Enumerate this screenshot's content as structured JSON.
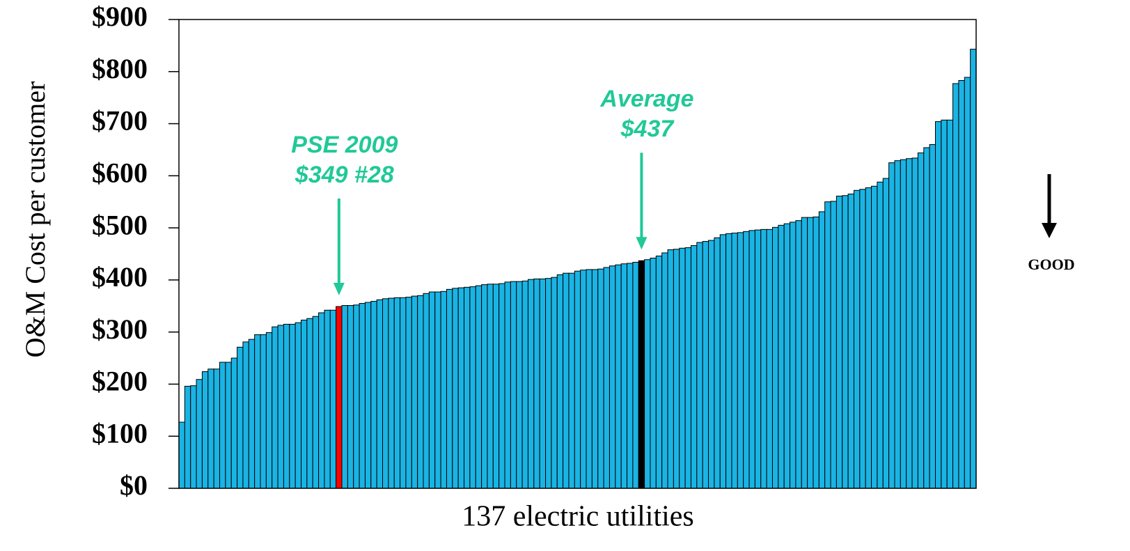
{
  "chart_data": {
    "type": "bar",
    "ylabel": "O&M Cost per customer",
    "xlabel": "137 electric utilities",
    "categories": [
      null,
      null,
      null,
      null,
      null,
      null,
      null,
      null,
      null,
      null,
      null,
      null,
      null,
      null,
      null,
      null,
      null,
      null,
      null,
      null,
      null,
      null,
      null,
      null,
      null,
      null,
      null,
      null,
      null,
      null,
      null,
      null,
      null,
      null,
      null,
      null,
      null,
      null,
      null,
      null,
      null,
      null,
      null,
      null,
      null,
      null,
      null,
      null,
      null,
      null,
      null,
      null,
      null,
      null,
      null,
      null,
      null,
      null,
      null,
      null,
      null,
      null,
      null,
      null,
      null,
      null,
      null,
      null,
      null,
      null,
      null,
      null,
      null,
      null,
      null,
      null,
      null,
      null,
      null,
      null,
      null,
      null,
      null,
      null,
      null,
      null,
      null,
      null,
      null,
      null,
      null,
      null,
      null,
      null,
      null,
      null,
      null,
      null,
      null,
      null,
      null,
      null,
      null,
      null,
      null,
      null,
      null,
      null,
      null,
      null,
      null,
      null,
      null,
      null,
      null,
      null,
      null,
      null,
      null,
      null,
      null,
      null,
      null,
      null,
      null,
      null,
      null,
      null,
      null,
      null,
      null,
      null,
      null,
      null,
      null,
      null,
      null
    ],
    "values": [
      127,
      196,
      197,
      209,
      224,
      229,
      229,
      242,
      242,
      250,
      271,
      281,
      286,
      295,
      295,
      299,
      310,
      313,
      315,
      315,
      318,
      323,
      326,
      330,
      337,
      342,
      342,
      349,
      351,
      351,
      352,
      355,
      357,
      359,
      362,
      364,
      365,
      366,
      366,
      367,
      369,
      370,
      374,
      377,
      377,
      378,
      382,
      384,
      385,
      386,
      387,
      389,
      391,
      392,
      392,
      393,
      396,
      397,
      397,
      398,
      401,
      402,
      402,
      403,
      405,
      410,
      413,
      413,
      417,
      419,
      420,
      420,
      421,
      424,
      427,
      429,
      431,
      432,
      434,
      437,
      439,
      442,
      446,
      452,
      458,
      459,
      461,
      462,
      466,
      472,
      474,
      476,
      481,
      487,
      489,
      490,
      491,
      493,
      495,
      496,
      497,
      497,
      501,
      505,
      508,
      511,
      514,
      520,
      520,
      521,
      531,
      550,
      551,
      561,
      562,
      565,
      572,
      574,
      577,
      580,
      588,
      595,
      625,
      629,
      631,
      633,
      634,
      644,
      654,
      660,
      704,
      707,
      707,
      777,
      783,
      789,
      843
    ],
    "color": "#1ab4e4",
    "highlights": [
      {
        "index": 27,
        "color": "#ff0000"
      },
      {
        "index": 79,
        "color": "#000000"
      }
    ],
    "ylim": [
      0,
      900
    ],
    "yticks": [
      {
        "value": 0,
        "label": "$0"
      },
      {
        "value": 100,
        "label": "$100"
      },
      {
        "value": 200,
        "label": "$200"
      },
      {
        "value": 300,
        "label": "$300"
      },
      {
        "value": 400,
        "label": "$400"
      },
      {
        "value": 500,
        "label": "$500"
      },
      {
        "value": 600,
        "label": "$600"
      },
      {
        "value": 700,
        "label": "$700"
      },
      {
        "value": 800,
        "label": "$800"
      },
      {
        "value": 900,
        "label": "$900"
      }
    ],
    "annotations": [
      {
        "lines": [
          "PSE 2009",
          "$349 #28"
        ],
        "index": 27,
        "color": "#20c997"
      },
      {
        "lines": [
          "Average",
          "$437"
        ],
        "index": 79,
        "color": "#20c997"
      }
    ],
    "side_note": "GOOD"
  }
}
